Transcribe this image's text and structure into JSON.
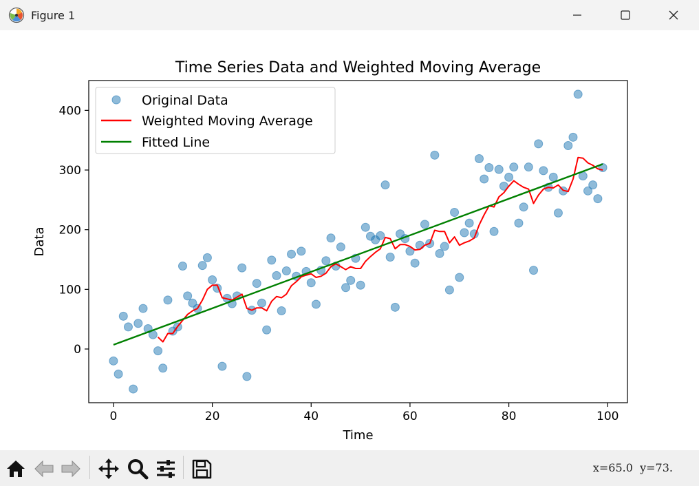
{
  "window": {
    "title": "Figure 1",
    "controls": [
      "minimize",
      "maximize",
      "close"
    ]
  },
  "toolbar": {
    "tools": [
      "home-icon",
      "back-icon",
      "forward-icon",
      "pan-icon",
      "zoom-icon",
      "configure-subplots-icon",
      "save-icon"
    ],
    "coords_x": "x=65.0",
    "coords_y": "y=73."
  },
  "colors": {
    "scatter": "#1f77b4",
    "moving_average": "#ff0000",
    "fitted_line": "#008000"
  },
  "chart_data": {
    "type": "scatter",
    "title": "Time Series Data and Weighted Moving Average",
    "xlabel": "Time",
    "ylabel": "Data",
    "xlim": [
      -5,
      104
    ],
    "ylim": [
      -90,
      450
    ],
    "xticks": [
      0,
      20,
      40,
      60,
      80,
      100
    ],
    "yticks": [
      0,
      100,
      200,
      300,
      400
    ],
    "grid": false,
    "legend": {
      "placement": "upper-left",
      "entries": [
        "Original Data",
        "Weighted Moving Average",
        "Fitted Line"
      ]
    },
    "series": [
      {
        "name": "Original Data",
        "kind": "scatter",
        "x": [
          0,
          1,
          2,
          3,
          4,
          5,
          6,
          7,
          8,
          9,
          10,
          11,
          12,
          13,
          14,
          15,
          16,
          17,
          18,
          19,
          20,
          21,
          22,
          23,
          24,
          25,
          26,
          27,
          28,
          29,
          30,
          31,
          32,
          33,
          34,
          35,
          36,
          37,
          38,
          39,
          40,
          41,
          42,
          43,
          44,
          45,
          46,
          47,
          48,
          49,
          50,
          51,
          52,
          53,
          54,
          55,
          56,
          57,
          58,
          59,
          60,
          61,
          62,
          63,
          64,
          65,
          66,
          67,
          68,
          69,
          70,
          71,
          72,
          73,
          74,
          75,
          76,
          77,
          78,
          79,
          80,
          81,
          82,
          83,
          84,
          85,
          86,
          87,
          88,
          89,
          90,
          91,
          92,
          93,
          94,
          95,
          96,
          97,
          98,
          99
        ],
        "y": [
          -20,
          -42,
          55,
          37,
          -67,
          43,
          68,
          34,
          24,
          -3,
          -32,
          82,
          30,
          37,
          139,
          89,
          77,
          68,
          140,
          153,
          116,
          102,
          -29,
          85,
          76,
          89,
          136,
          -46,
          65,
          110,
          77,
          32,
          149,
          123,
          64,
          131,
          159,
          122,
          164,
          130,
          111,
          75,
          132,
          148,
          186,
          139,
          171,
          103,
          115,
          152,
          107,
          204,
          189,
          183,
          190,
          275,
          154,
          70,
          193,
          185,
          164,
          144,
          174,
          209,
          177,
          325,
          160,
          172,
          99,
          229,
          120,
          195,
          211,
          193,
          319,
          285,
          304,
          197,
          301,
          273,
          288,
          305,
          211,
          238,
          305,
          132,
          344,
          299,
          271,
          288,
          228,
          265,
          341,
          355,
          427,
          290,
          265,
          275,
          252,
          304
        ]
      },
      {
        "name": "Weighted Moving Average",
        "kind": "line",
        "x": [
          9,
          10,
          11,
          12,
          13,
          14,
          15,
          16,
          17,
          18,
          19,
          20,
          21,
          22,
          23,
          24,
          25,
          26,
          27,
          28,
          29,
          30,
          31,
          32,
          33,
          34,
          35,
          36,
          37,
          38,
          39,
          40,
          41,
          42,
          43,
          44,
          45,
          46,
          47,
          48,
          49,
          50,
          51,
          52,
          53,
          54,
          55,
          56,
          57,
          58,
          59,
          60,
          61,
          62,
          63,
          64,
          65,
          66,
          67,
          68,
          69,
          70,
          71,
          72,
          73,
          74,
          75,
          76,
          77,
          78,
          79,
          80,
          81,
          82,
          83,
          84,
          85,
          86,
          87,
          88,
          89,
          90,
          91,
          92,
          93,
          94,
          95,
          96,
          97,
          98,
          99
        ],
        "y": [
          20,
          12,
          26,
          26,
          38,
          48,
          58,
          64,
          68,
          82,
          100,
          107,
          107,
          86,
          84,
          82,
          87,
          92,
          68,
          65,
          69,
          69,
          64,
          80,
          88,
          86,
          92,
          106,
          113,
          121,
          124,
          126,
          120,
          122,
          127,
          138,
          143,
          138,
          133,
          138,
          135,
          135,
          147,
          155,
          162,
          168,
          187,
          185,
          168,
          175,
          175,
          172,
          166,
          167,
          174,
          177,
          199,
          197,
          197,
          178,
          188,
          174,
          178,
          181,
          186,
          208,
          225,
          240,
          238,
          255,
          262,
          273,
          282,
          276,
          271,
          268,
          244,
          258,
          268,
          271,
          270,
          275,
          266,
          264,
          285,
          321,
          320,
          312,
          308,
          302,
          300
        ]
      },
      {
        "name": "Fitted Line",
        "kind": "line",
        "x": [
          0,
          99
        ],
        "y": [
          7,
          310
        ]
      }
    ]
  }
}
